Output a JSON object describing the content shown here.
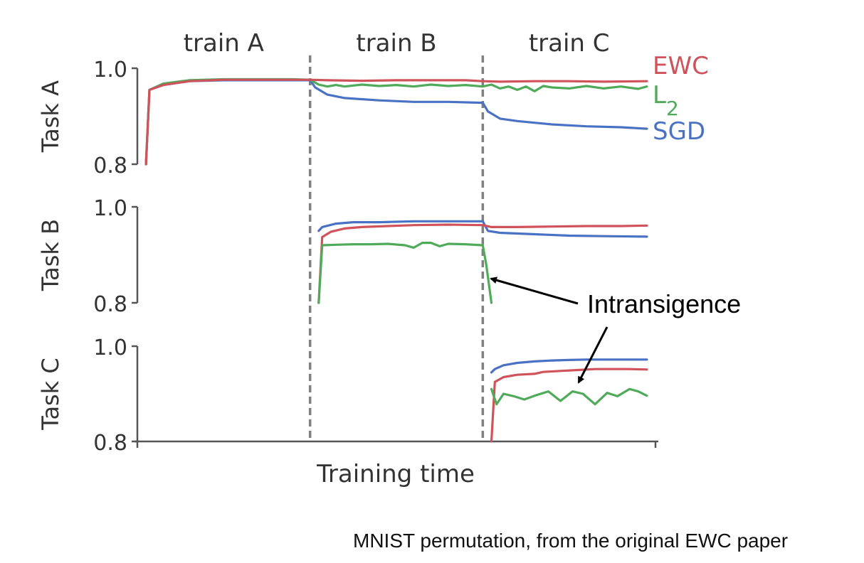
{
  "chart_data": {
    "type": "line",
    "xlabel": "Training time",
    "phases": [
      "train A",
      "train B",
      "train C"
    ],
    "colors": {
      "EWC": "#d0525a",
      "L2": "#4faa5a",
      "SGD": "#4a72c4",
      "divider": "#808080",
      "axis": "#555555"
    },
    "legend": [
      {
        "name": "EWC",
        "text": "EWC",
        "sub": "",
        "color_key": "EWC"
      },
      {
        "name": "L2",
        "text": "L",
        "sub": "2",
        "color_key": "L2"
      },
      {
        "name": "SGD",
        "text": "SGD",
        "sub": "",
        "color_key": "SGD"
      }
    ],
    "xlim": [
      0,
      3
    ],
    "panels": [
      {
        "name": "task-a",
        "ylabel": "Task A",
        "ylim": [
          0.8,
          1.0
        ],
        "yticks": [
          "1.0",
          "0.8"
        ],
        "series": [
          {
            "name": "SGD",
            "x": [
              0.05,
              0.07,
              0.15,
              0.3,
              0.5,
              0.7,
              0.9,
              1.0,
              1.03,
              1.1,
              1.2,
              1.4,
              1.6,
              1.8,
              2.0,
              2.03,
              2.1,
              2.2,
              2.4,
              2.6,
              2.8,
              2.95
            ],
            "y": [
              0.8,
              0.955,
              0.965,
              0.973,
              0.975,
              0.975,
              0.975,
              0.975,
              0.96,
              0.945,
              0.938,
              0.933,
              0.93,
              0.93,
              0.928,
              0.91,
              0.895,
              0.89,
              0.883,
              0.879,
              0.877,
              0.874
            ]
          },
          {
            "name": "L2",
            "x": [
              0.05,
              0.07,
              0.15,
              0.3,
              0.5,
              0.7,
              0.9,
              1.0,
              1.05,
              1.1,
              1.15,
              1.2,
              1.3,
              1.4,
              1.5,
              1.6,
              1.7,
              1.8,
              1.9,
              2.0,
              2.05,
              2.1,
              2.15,
              2.2,
              2.25,
              2.3,
              2.35,
              2.4,
              2.5,
              2.6,
              2.7,
              2.8,
              2.9,
              2.95
            ],
            "y": [
              0.8,
              0.955,
              0.968,
              0.975,
              0.977,
              0.977,
              0.977,
              0.976,
              0.966,
              0.962,
              0.965,
              0.962,
              0.966,
              0.963,
              0.965,
              0.962,
              0.966,
              0.963,
              0.965,
              0.962,
              0.966,
              0.958,
              0.962,
              0.955,
              0.962,
              0.952,
              0.963,
              0.96,
              0.958,
              0.963,
              0.958,
              0.962,
              0.957,
              0.962
            ]
          },
          {
            "name": "EWC",
            "x": [
              0.05,
              0.07,
              0.15,
              0.3,
              0.5,
              0.7,
              0.9,
              1.0,
              1.1,
              1.3,
              1.5,
              1.7,
              1.9,
              2.0,
              2.1,
              2.3,
              2.5,
              2.7,
              2.95
            ],
            "y": [
              0.8,
              0.955,
              0.965,
              0.973,
              0.976,
              0.976,
              0.976,
              0.976,
              0.975,
              0.974,
              0.975,
              0.975,
              0.975,
              0.973,
              0.972,
              0.973,
              0.973,
              0.972,
              0.973
            ]
          }
        ]
      },
      {
        "name": "task-b",
        "ylabel": "Task B",
        "ylim": [
          0.8,
          1.0
        ],
        "yticks": [
          "1.0",
          "0.8"
        ],
        "series": [
          {
            "name": "SGD",
            "x": [
              1.05,
              1.07,
              1.15,
              1.25,
              1.4,
              1.6,
              1.8,
              2.0,
              2.03,
              2.1,
              2.3,
              2.5,
              2.7,
              2.95
            ],
            "y": [
              0.95,
              0.958,
              0.965,
              0.968,
              0.968,
              0.97,
              0.97,
              0.97,
              0.95,
              0.946,
              0.943,
              0.94,
              0.939,
              0.938
            ]
          },
          {
            "name": "EWC",
            "x": [
              1.05,
              1.07,
              1.12,
              1.2,
              1.3,
              1.45,
              1.6,
              1.8,
              2.0,
              2.05,
              2.2,
              2.4,
              2.6,
              2.8,
              2.95
            ],
            "y": [
              0.8,
              0.937,
              0.948,
              0.955,
              0.958,
              0.96,
              0.962,
              0.963,
              0.962,
              0.958,
              0.958,
              0.959,
              0.96,
              0.96,
              0.961
            ]
          },
          {
            "name": "L2",
            "x": [
              1.05,
              1.07,
              1.15,
              1.25,
              1.35,
              1.45,
              1.55,
              1.6,
              1.65,
              1.7,
              1.75,
              1.8,
              1.9,
              2.0,
              2.02,
              2.05
            ],
            "y": [
              0.8,
              0.92,
              0.921,
              0.922,
              0.922,
              0.923,
              0.92,
              0.915,
              0.925,
              0.925,
              0.918,
              0.923,
              0.922,
              0.92,
              0.88,
              0.8
            ]
          }
        ]
      },
      {
        "name": "task-c",
        "ylabel": "Task C",
        "ylim": [
          0.8,
          1.0
        ],
        "yticks": [
          "1.0",
          "0.8"
        ],
        "series": [
          {
            "name": "SGD",
            "x": [
              2.05,
              2.07,
              2.12,
              2.2,
              2.3,
              2.4,
              2.5,
              2.6,
              2.7,
              2.8,
              2.95
            ],
            "y": [
              0.945,
              0.952,
              0.96,
              0.965,
              0.968,
              0.97,
              0.971,
              0.972,
              0.972,
              0.972,
              0.972
            ]
          },
          {
            "name": "EWC",
            "x": [
              2.05,
              2.07,
              2.12,
              2.2,
              2.3,
              2.35,
              2.45,
              2.55,
              2.65,
              2.75,
              2.85,
              2.95
            ],
            "y": [
              0.8,
              0.925,
              0.935,
              0.94,
              0.942,
              0.946,
              0.948,
              0.95,
              0.952,
              0.952,
              0.952,
              0.951
            ]
          },
          {
            "name": "L2",
            "x": [
              2.05,
              2.08,
              2.12,
              2.18,
              2.24,
              2.3,
              2.38,
              2.45,
              2.52,
              2.58,
              2.65,
              2.72,
              2.78,
              2.85,
              2.9,
              2.95
            ],
            "y": [
              0.91,
              0.878,
              0.9,
              0.895,
              0.888,
              0.896,
              0.905,
              0.885,
              0.905,
              0.9,
              0.878,
              0.902,
              0.895,
              0.91,
              0.905,
              0.896
            ]
          }
        ]
      }
    ],
    "annotation": {
      "text": "Intransigence"
    }
  },
  "caption": "MNIST permutation, from the original EWC paper"
}
